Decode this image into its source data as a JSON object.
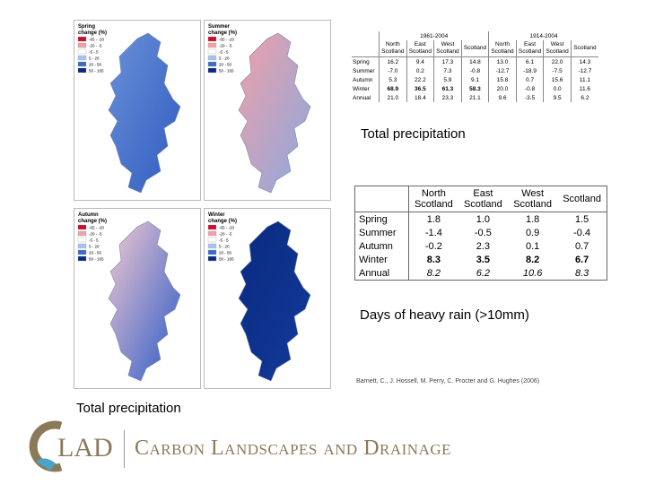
{
  "maps": {
    "panels": [
      {
        "title": "Spring",
        "subtitle": "change (%)"
      },
      {
        "title": "Summer",
        "subtitle": "change (%)"
      },
      {
        "title": "Autumn",
        "subtitle": "change (%)"
      },
      {
        "title": "Winter",
        "subtitle": "change (%)"
      }
    ],
    "legend": [
      "-65 - -20",
      "-20 - -5",
      "-5 - 5",
      "5 - 20",
      "20 - 50",
      "50 - 165"
    ]
  },
  "table1": {
    "periods": [
      "1961-2004",
      "1914-2004"
    ],
    "columns": [
      "North Scotland",
      "East Scotland",
      "West Scotland",
      "Scotland",
      "North Scotland",
      "East Scotland",
      "West Scotland",
      "Scotland"
    ],
    "rows": [
      [
        "Spring",
        "16.2",
        "9.4",
        "17.3",
        "14.8",
        "13.0",
        "6.1",
        "22.0",
        "14.3"
      ],
      [
        "Summer",
        "-7.0",
        "0.2",
        "7.3",
        "-0.8",
        "-12.7",
        "-18.9",
        "-7.5",
        "-12.7"
      ],
      [
        "Autumn",
        "5.3",
        "22.2",
        "5.9",
        "9.1",
        "15.8",
        "0.7",
        "15.6",
        "11.1"
      ],
      [
        "Winter",
        "68.9",
        "36.5",
        "61.3",
        "58.3",
        "20.0",
        "-0.8",
        "0.0",
        "11.6"
      ],
      [
        "Annual",
        "21.0",
        "18.4",
        "23.3",
        "21.1",
        "9.6",
        "-3.5",
        "9.5",
        "6.2"
      ]
    ]
  },
  "caption1": "Total precipitation",
  "table2": {
    "columns": [
      "North Scotland",
      "East Scotland",
      "West Scotland",
      "Scotland"
    ],
    "rows": [
      [
        "Spring",
        "1.8",
        "1.0",
        "1.8",
        "1.5"
      ],
      [
        "Summer",
        "-1.4",
        "-0.5",
        "0.9",
        "-0.4"
      ],
      [
        "Autumn",
        "-0.2",
        "2.3",
        "0.1",
        "0.7"
      ],
      [
        "Winter",
        "8.3",
        "3.5",
        "8.2",
        "6.7"
      ],
      [
        "Annual",
        "8.2",
        "6.2",
        "10.6",
        "8.3"
      ]
    ]
  },
  "caption2": "Days of heavy rain (>10mm)",
  "citation": "Barnett, C., J. Hossell, M. Perry, C. Procter and G. Hughes (2006)",
  "caption3": "Total precipitation",
  "logo": {
    "mark": "LAD",
    "name": "Carbon Landscapes and Drainage"
  }
}
